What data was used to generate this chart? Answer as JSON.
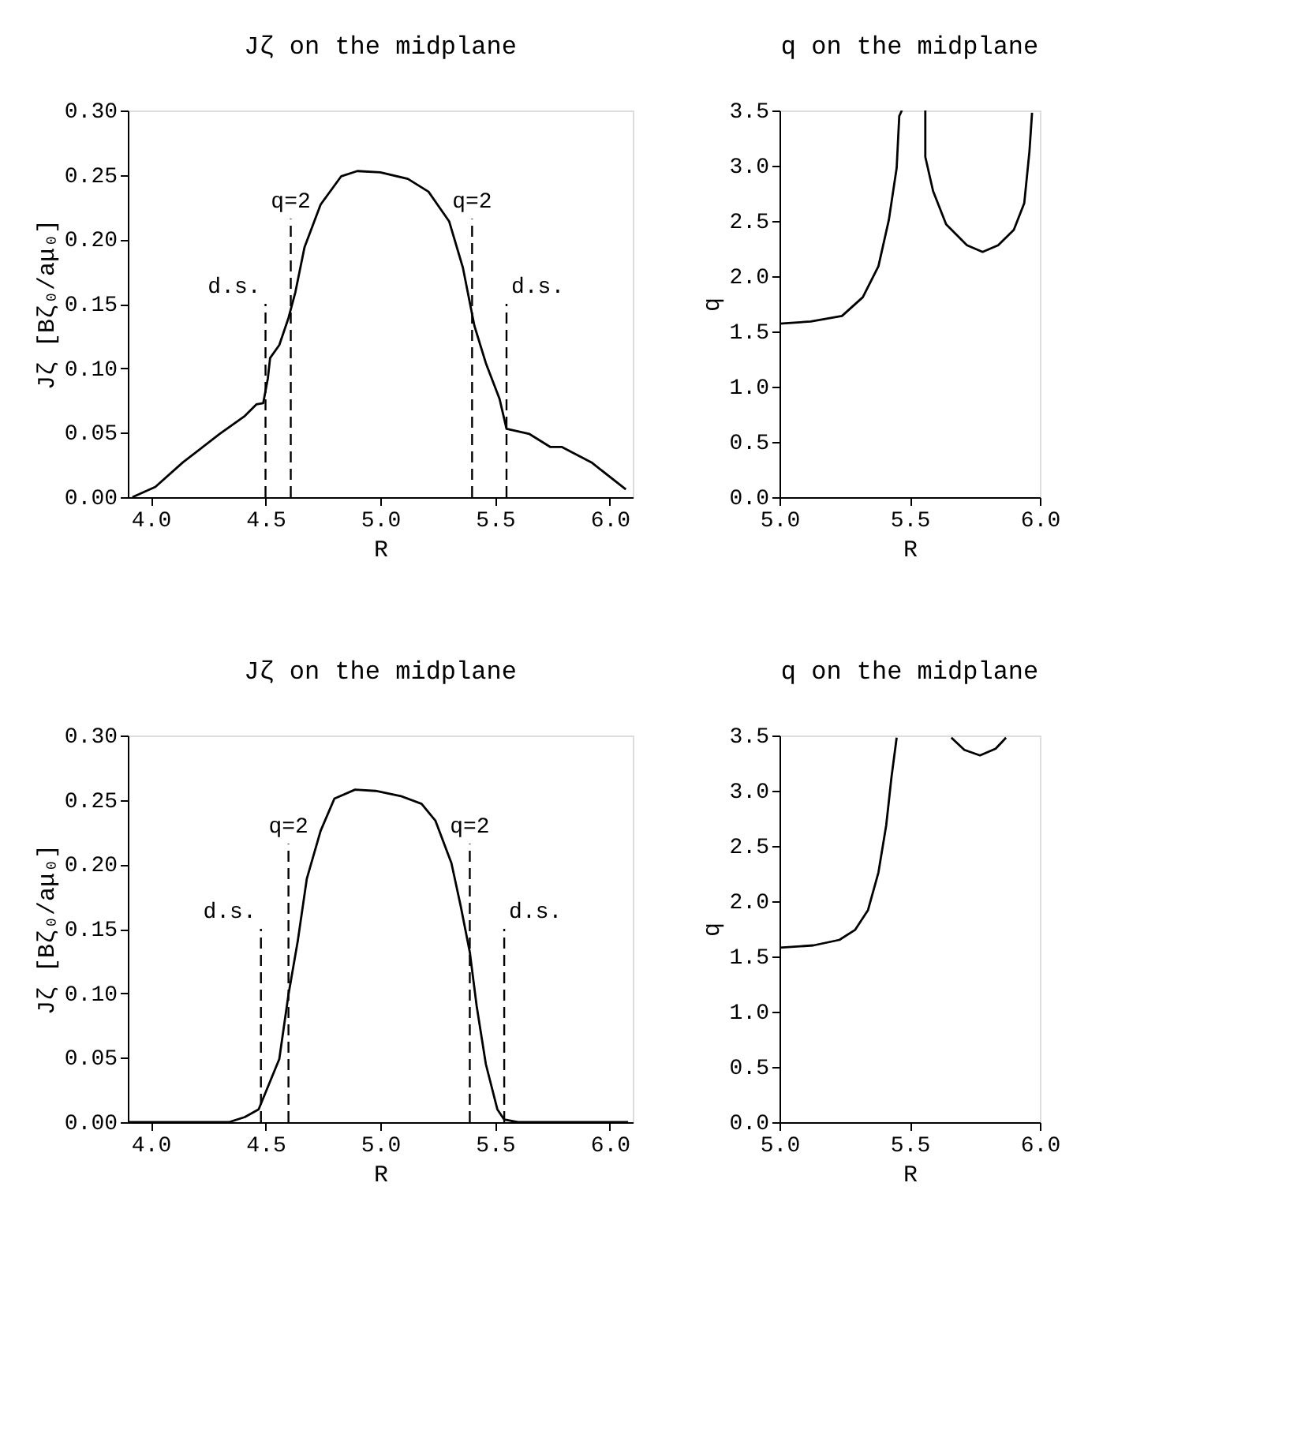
{
  "chart_data": [
    {
      "type": "line",
      "title": "Jζ  on the midplane",
      "xlabel": "R",
      "ylabel": "Jζ [Bζ₀/aμ₀]",
      "x": [
        3.92,
        4.02,
        4.14,
        4.3,
        4.41,
        4.46,
        4.49,
        4.51,
        4.52,
        4.56,
        4.6,
        4.63,
        4.67,
        4.74,
        4.83,
        4.9,
        5.0,
        5.12,
        5.21,
        5.3,
        5.36,
        5.41,
        5.46,
        5.52,
        5.55,
        5.65,
        5.74,
        5.79,
        5.92,
        6.07
      ],
      "series": [
        {
          "color": "#000000",
          "values": [
            0,
            0.008,
            0.027,
            0.049,
            0.063,
            0.072,
            0.073,
            0.092,
            0.108,
            0.118,
            0.139,
            0.159,
            0.194,
            0.227,
            0.249,
            0.253,
            0.252,
            0.247,
            0.237,
            0.214,
            0.178,
            0.133,
            0.104,
            0.076,
            0.053,
            0.049,
            0.039,
            0.039,
            0.027,
            0.006
          ]
        }
      ],
      "xlim": [
        3.9,
        6.1
      ],
      "ylim": [
        0,
        0.3
      ],
      "xticks": [
        {
          "value": 4,
          "label": "4.0"
        },
        {
          "value": 4.5,
          "label": "4.5"
        },
        {
          "value": 5,
          "label": "5.0"
        },
        {
          "value": 5.5,
          "label": "5.5"
        },
        {
          "value": 6,
          "label": "6.0"
        }
      ],
      "yticks": [
        {
          "value": 0,
          "label": "0.00"
        },
        {
          "value": 0.05,
          "label": "0.05"
        },
        {
          "value": 0.1,
          "label": "0.10"
        },
        {
          "value": 0.15,
          "label": "0.15"
        },
        {
          "value": 0.2,
          "label": "0.20"
        },
        {
          "value": 0.25,
          "label": "0.25"
        },
        {
          "value": 0.3,
          "label": "0.30"
        }
      ],
      "ref_lines": [
        {
          "axis": "x",
          "value": 4.5,
          "line_style": "dashed"
        },
        {
          "axis": "x",
          "value": 4.61,
          "line_style": "dashed"
        },
        {
          "axis": "x",
          "value": 5.4,
          "line_style": "dashed"
        },
        {
          "axis": "x",
          "value": 5.55,
          "line_style": "dashed"
        }
      ],
      "annotations": [
        "d.s.",
        "q=2",
        "q=2",
        "d.s."
      ],
      "grid": false,
      "line_style": "solid"
    },
    {
      "type": "line",
      "title": "q on the midplane",
      "xlabel": "R",
      "ylabel": "q",
      "x": [
        5.0,
        5.12,
        5.24,
        5.32,
        5.38,
        5.42,
        5.45,
        5.46,
        5.47,
        5.5,
        5.56,
        5.56,
        5.59,
        5.64,
        5.72,
        5.78,
        5.84,
        5.9,
        5.94,
        5.96,
        5.97
      ],
      "series": [
        {
          "color": "#000000",
          "values": [
            1.57,
            1.59,
            1.64,
            1.81,
            2.09,
            2.51,
            2.98,
            3.45,
            3.5,
            null,
            3.5,
            3.08,
            2.77,
            2.47,
            2.28,
            2.22,
            2.28,
            2.42,
            2.66,
            3.13,
            3.48
          ]
        }
      ],
      "xlim": [
        5.0,
        6.0
      ],
      "ylim": [
        0,
        3.5
      ],
      "xticks": [
        {
          "value": 5,
          "label": "5.0"
        },
        5.5,
        {
          "value": 6,
          "label": "6.0"
        }
      ],
      "yticks": [
        {
          "value": 0,
          "label": "0.0"
        },
        0.5,
        {
          "value": 1,
          "label": "1.0"
        },
        1.5,
        {
          "value": 2,
          "label": "2.0"
        },
        2.5,
        {
          "value": 3,
          "label": "3.0"
        },
        3.5
      ],
      "grid": false,
      "line_style": "solid"
    },
    {
      "type": "line",
      "title": "Jζ  on the midplane",
      "xlabel": "R",
      "ylabel": "Jζ [Bζ₀/aμ₀]",
      "x": [
        3.9,
        4.34,
        4.41,
        4.47,
        4.5,
        4.56,
        4.6,
        4.64,
        4.68,
        4.74,
        4.8,
        4.89,
        4.98,
        5.09,
        5.18,
        5.24,
        5.31,
        5.35,
        5.39,
        5.42,
        5.46,
        5.51,
        5.54,
        5.6,
        6.08
      ],
      "series": [
        {
          "color": "#000000",
          "values": [
            0,
            0,
            0.004,
            0.01,
            0.023,
            0.049,
            0.099,
            0.14,
            0.189,
            0.226,
            0.251,
            0.258,
            0.257,
            0.253,
            0.247,
            0.234,
            0.201,
            0.168,
            0.132,
            0.09,
            0.045,
            0.01,
            0.002,
            0,
            0
          ]
        }
      ],
      "xlim": [
        3.9,
        6.1
      ],
      "ylim": [
        0,
        0.3
      ],
      "xticks": [
        {
          "value": 4,
          "label": "4.0"
        },
        {
          "value": 4.5,
          "label": "4.5"
        },
        {
          "value": 5,
          "label": "5.0"
        },
        {
          "value": 5.5,
          "label": "5.5"
        },
        {
          "value": 6,
          "label": "6.0"
        }
      ],
      "yticks": [
        {
          "value": 0,
          "label": "0.00"
        },
        {
          "value": 0.05,
          "label": "0.05"
        },
        {
          "value": 0.1,
          "label": "0.10"
        },
        {
          "value": 0.15,
          "label": "0.15"
        },
        {
          "value": 0.2,
          "label": "0.20"
        },
        {
          "value": 0.25,
          "label": "0.25"
        },
        {
          "value": 0.3,
          "label": "0.30"
        }
      ],
      "ref_lines": [
        {
          "axis": "x",
          "value": 4.48,
          "line_style": "dashed"
        },
        {
          "axis": "x",
          "value": 4.6,
          "line_style": "dashed"
        },
        {
          "axis": "x",
          "value": 5.39,
          "line_style": "dashed"
        },
        {
          "axis": "x",
          "value": 5.54,
          "line_style": "dashed"
        }
      ],
      "annotations": [
        "d.s.",
        "q=2",
        "q=2",
        "d.s."
      ],
      "grid": false,
      "line_style": "solid"
    },
    {
      "type": "line",
      "title": "q on the midplane",
      "xlabel": "R",
      "ylabel": "q",
      "x": [
        5.0,
        5.13,
        5.23,
        5.29,
        5.34,
        5.38,
        5.41,
        5.43,
        5.45,
        5.55,
        5.66,
        5.71,
        5.77,
        5.83,
        5.87
      ],
      "series": [
        {
          "color": "#000000",
          "values": [
            1.58,
            1.6,
            1.65,
            1.74,
            1.92,
            2.26,
            2.69,
            3.12,
            3.48,
            null,
            3.48,
            3.37,
            3.32,
            3.38,
            3.48
          ]
        }
      ],
      "xlim": [
        5.0,
        6.0
      ],
      "ylim": [
        0,
        3.5
      ],
      "xticks": [
        {
          "value": 5,
          "label": "5.0"
        },
        5.5,
        {
          "value": 6,
          "label": "6.0"
        }
      ],
      "yticks": [
        {
          "value": 0,
          "label": "0.0"
        },
        0.5,
        {
          "value": 1,
          "label": "1.0"
        },
        1.5,
        {
          "value": 2,
          "label": "2.0"
        },
        2.5,
        {
          "value": 3,
          "label": "3.0"
        },
        3.5
      ],
      "grid": false,
      "line_style": "solid"
    }
  ]
}
